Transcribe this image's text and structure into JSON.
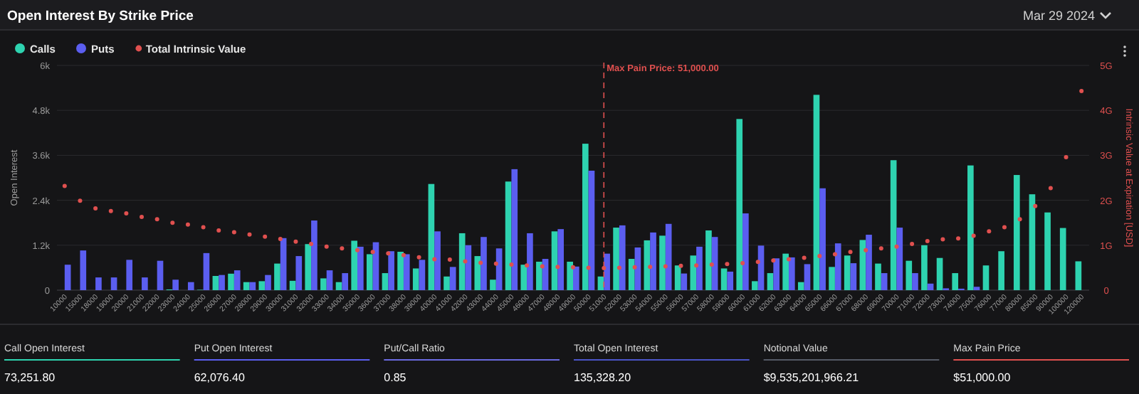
{
  "chart_data": {
    "type": "bar",
    "title": "Open Interest By Strike Price",
    "subtitle": "Mar 29 2024",
    "ylabel": "Open Interest",
    "y2label": "Intrinsic Value at Expiration [USD]",
    "categories": [
      "10000",
      "15000",
      "18000",
      "19000",
      "20000",
      "21000",
      "22000",
      "23000",
      "24000",
      "25000",
      "26000",
      "27000",
      "28000",
      "29000",
      "30000",
      "31000",
      "32000",
      "33000",
      "34000",
      "35000",
      "36000",
      "37000",
      "38000",
      "39000",
      "40000",
      "41000",
      "42000",
      "43000",
      "44000",
      "45000",
      "46000",
      "47000",
      "48000",
      "49000",
      "50000",
      "51000",
      "52000",
      "53000",
      "54000",
      "55000",
      "56000",
      "57000",
      "58000",
      "59000",
      "60000",
      "61000",
      "62000",
      "63000",
      "64000",
      "65000",
      "66000",
      "67000",
      "68000",
      "69000",
      "70000",
      "71000",
      "72000",
      "73000",
      "74000",
      "75000",
      "76000",
      "77000",
      "80000",
      "85000",
      "90000",
      "100000",
      "120000"
    ],
    "series": [
      {
        "name": "Calls",
        "color": "#2ed3b0",
        "values": [
          0,
          0,
          0,
          0,
          0,
          0,
          0,
          20,
          0,
          10,
          380,
          440,
          215,
          240,
          710,
          250,
          1230,
          315,
          215,
          1320,
          960,
          455,
          1025,
          580,
          2835,
          365,
          1520,
          910,
          280,
          2900,
          680,
          760,
          1570,
          760,
          3910,
          365,
          1670,
          835,
          1330,
          1455,
          660,
          925,
          1595,
          580,
          4570,
          240,
          455,
          975,
          215,
          5215,
          620,
          925,
          1340,
          710,
          3470,
          785,
          1200,
          860,
          455,
          3330,
          660,
          1040,
          3075,
          2560,
          2075,
          1660,
          770
        ]
      },
      {
        "name": "Puts",
        "color": "#5b5ef0",
        "values": [
          680,
          1060,
          340,
          340,
          810,
          340,
          785,
          280,
          215,
          990,
          405,
          530,
          215,
          405,
          1390,
          910,
          1860,
          530,
          455,
          1160,
          1280,
          1040,
          960,
          810,
          1570,
          620,
          1200,
          1420,
          1115,
          3230,
          1520,
          835,
          1630,
          630,
          3190,
          975,
          1730,
          1140,
          1540,
          1770,
          445,
          1160,
          1420,
          495,
          2050,
          1190,
          850,
          875,
          695,
          2720,
          1250,
          720,
          1480,
          455,
          1670,
          455,
          175,
          50,
          40,
          90,
          0,
          0,
          0,
          0,
          0,
          0,
          0
        ]
      },
      {
        "name": "Total Intrinsic Value",
        "type": "scatter",
        "axis": "y2",
        "color": "#e0504f",
        "values": [
          2.32,
          1.99,
          1.82,
          1.76,
          1.71,
          1.63,
          1.58,
          1.5,
          1.46,
          1.4,
          1.33,
          1.29,
          1.24,
          1.19,
          1.14,
          1.08,
          1.03,
          0.97,
          0.93,
          0.89,
          0.85,
          0.82,
          0.78,
          0.73,
          0.69,
          0.68,
          0.64,
          0.61,
          0.59,
          0.57,
          0.55,
          0.53,
          0.52,
          0.51,
          0.5,
          0.49,
          0.5,
          0.51,
          0.52,
          0.53,
          0.54,
          0.55,
          0.57,
          0.58,
          0.6,
          0.63,
          0.66,
          0.69,
          0.72,
          0.76,
          0.8,
          0.85,
          0.89,
          0.93,
          0.97,
          1.03,
          1.09,
          1.13,
          1.15,
          1.21,
          1.31,
          1.4,
          1.58,
          1.87,
          2.27,
          2.96,
          4.43
        ]
      }
    ],
    "ylim": [
      0,
      6000
    ],
    "yticks": [
      0,
      {
        "value": 1200,
        "label": "1.2k"
      },
      {
        "value": 2400,
        "label": "2.4k"
      },
      {
        "value": 3600,
        "label": "3.6k"
      },
      {
        "value": 4800,
        "label": "4.8k"
      },
      {
        "value": 6000,
        "label": "6k"
      }
    ],
    "y2lim": [
      0,
      5
    ],
    "y2ticks": [
      0,
      {
        "value": 1,
        "label": "1G"
      },
      {
        "value": 2,
        "label": "2G"
      },
      {
        "value": 3,
        "label": "3G"
      },
      {
        "value": 4,
        "label": "4G"
      },
      {
        "value": 5,
        "label": "5G"
      }
    ],
    "ref_lines": [
      {
        "axis": "x",
        "value": "51000",
        "label": "Max Pain Price: 51,000.00",
        "color": "#e0504f",
        "line_style": "dashed"
      }
    ],
    "annotations": [
      "Call Open Interest",
      "73,251.80",
      "Put Open Interest",
      "62,076.40",
      "Put/Call Ratio",
      "0.85",
      "Total Open Interest",
      "135,328.20",
      "Notional Value",
      "$9,535,201,966.21",
      "Max Pain Price",
      "$51,000.00"
    ],
    "grid": "y",
    "legend": "top left",
    "marker": "circle"
  }
}
